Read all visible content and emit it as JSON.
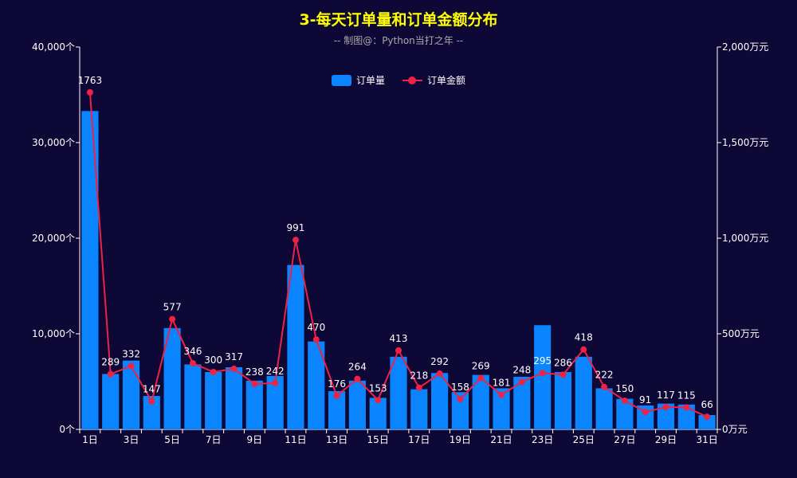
{
  "title": "3-每天订单量和订单金额分布",
  "subtitle": "-- 制图@：Python当打之年 --",
  "legend": {
    "bar_label": "订单量",
    "line_label": "订单金额"
  },
  "colors": {
    "background": "#0e0837",
    "bar": "#0a84ff",
    "line": "#ee2244",
    "title": "#ffff00",
    "text": "#ffffff"
  },
  "chart_data": {
    "type": "bar",
    "title": "3-每天订单量和订单金额分布",
    "subtitle": "-- 制图@：Python当打之年 --",
    "categories": [
      "1日",
      "2日",
      "3日",
      "4日",
      "5日",
      "6日",
      "7日",
      "8日",
      "9日",
      "10日",
      "11日",
      "12日",
      "13日",
      "14日",
      "15日",
      "16日",
      "17日",
      "18日",
      "19日",
      "20日",
      "21日",
      "22日",
      "23日",
      "24日",
      "25日",
      "26日",
      "27日",
      "28日",
      "29日",
      "30日",
      "31日"
    ],
    "x_tick_labels": [
      "1日",
      "3日",
      "5日",
      "7日",
      "9日",
      "11日",
      "13日",
      "15日",
      "17日",
      "19日",
      "21日",
      "23日",
      "25日",
      "27日",
      "29日",
      "31日"
    ],
    "left_axis": {
      "ylim": [
        0,
        40000
      ],
      "ticks": [
        0,
        10000,
        20000,
        30000,
        40000
      ],
      "tick_labels": [
        "0个",
        "10,000个",
        "20,000个",
        "30,000个",
        "40,000个"
      ]
    },
    "right_axis": {
      "ylim": [
        0,
        2000
      ],
      "ticks": [
        0,
        500,
        1000,
        1500,
        2000
      ],
      "tick_labels": [
        "0万元",
        "500万元",
        "1,000万元",
        "1,500万元",
        "2,000万元"
      ]
    },
    "legend_position": "top",
    "grid": false,
    "series": [
      {
        "name": "订单量",
        "type": "bar",
        "axis": "left",
        "values": [
          33300,
          5800,
          7200,
          3500,
          10600,
          6800,
          6000,
          6500,
          5100,
          5600,
          17200,
          9200,
          4000,
          5100,
          3300,
          7600,
          4200,
          5900,
          3900,
          5700,
          4300,
          5500,
          10900,
          6000,
          7600,
          4300,
          3200,
          2500,
          2700,
          2600,
          1500
        ]
      },
      {
        "name": "订单金额",
        "type": "line",
        "axis": "right",
        "values": [
          1763,
          289,
          332,
          147,
          577,
          346,
          300,
          317,
          238,
          242,
          991,
          470,
          176,
          264,
          153,
          413,
          218,
          292,
          158,
          269,
          181,
          248,
          295,
          286,
          418,
          222,
          150,
          91,
          117,
          115,
          66
        ]
      }
    ]
  }
}
